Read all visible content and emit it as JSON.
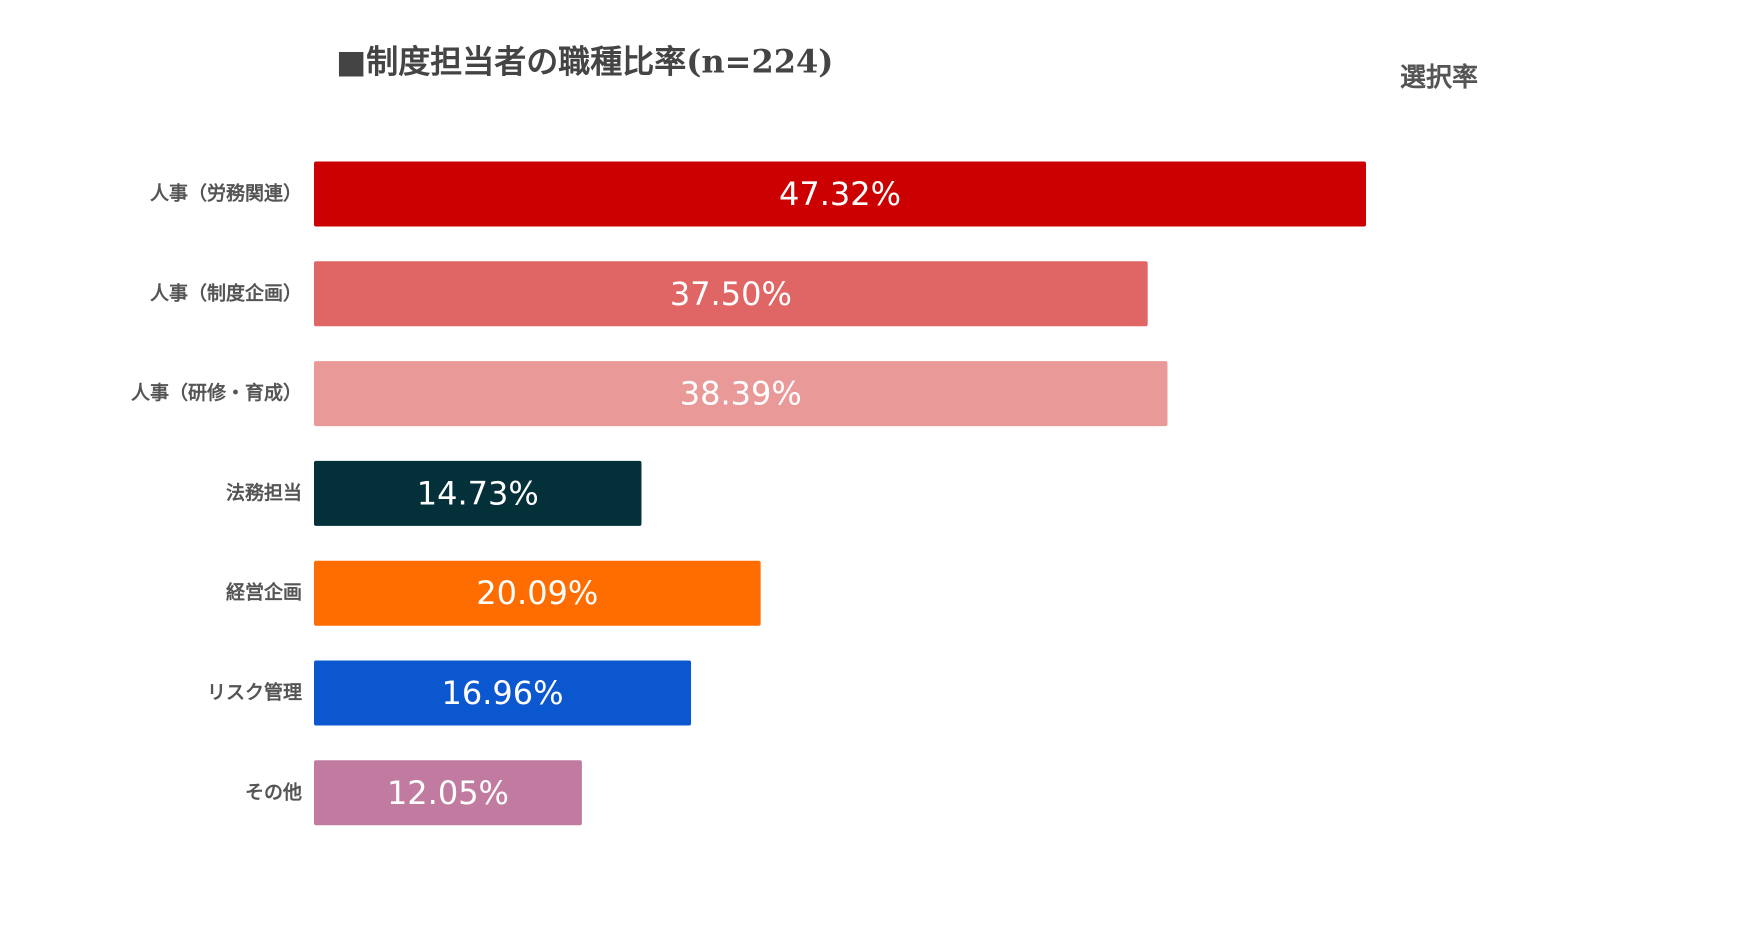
{
  "chart_data": {
    "type": "bar",
    "orientation": "horizontal",
    "title": "■制度担当者の職種比率(n=224)",
    "value_axis_label": "選択率",
    "categories": [
      "人事（労務関連）",
      "人事（制度企画）",
      "人事（研修・育成）",
      "法務担当",
      "経営企画",
      "リスク管理",
      "その他"
    ],
    "values": [
      47.32,
      37.5,
      38.39,
      14.73,
      20.09,
      16.96,
      12.05
    ],
    "value_labels": [
      "47.32%",
      "37.50%",
      "38.39%",
      "14.73%",
      "20.09%",
      "16.96%",
      "12.05%"
    ],
    "colors": [
      "#cc0000",
      "#e06666",
      "#ea9999",
      "#04303a",
      "#ff6d01",
      "#0b57d0",
      "#c27ba0"
    ]
  }
}
